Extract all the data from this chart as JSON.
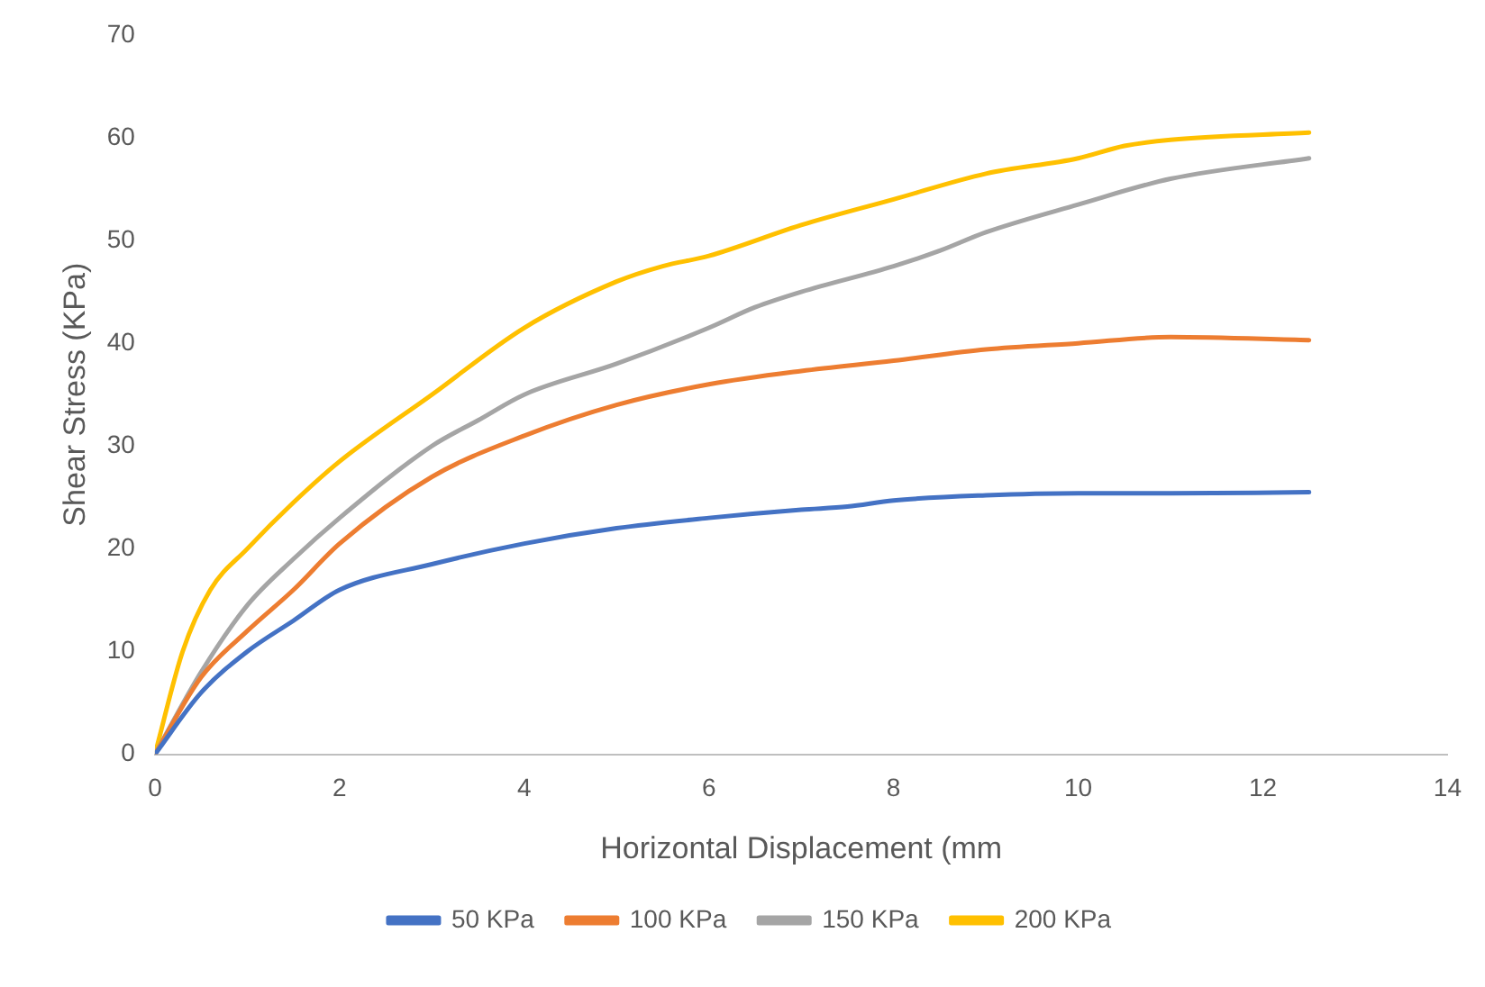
{
  "chart_data": {
    "type": "line",
    "xlabel": "Horizontal Displacement (mm",
    "ylabel": "Shear Stress (KPa)",
    "xlim": [
      0,
      14
    ],
    "xticks": [
      0,
      2,
      4,
      6,
      8,
      10,
      12,
      14
    ],
    "ylim": [
      0,
      70
    ],
    "yticks": [
      0,
      10,
      20,
      30,
      40,
      50,
      60,
      70
    ],
    "grid": false,
    "legend": "bottom",
    "marker": "none",
    "line_style": "solid",
    "series": [
      {
        "name": "50 KPa",
        "color": "#4472c4",
        "x": [
          0,
          0.5,
          1,
          1.5,
          2,
          3,
          4,
          5,
          6,
          7,
          7.5,
          8,
          9,
          10,
          11,
          12.5
        ],
        "values": [
          0,
          6,
          10,
          13,
          16,
          18.5,
          20.5,
          22,
          23,
          23.8,
          24.1,
          24.7,
          25.2,
          25.4,
          25.4,
          25.5
        ]
      },
      {
        "name": "100 KPa",
        "color": "#ed7d31",
        "x": [
          0,
          0.5,
          1,
          1.5,
          2,
          3,
          4,
          5,
          6,
          7,
          8,
          9,
          10,
          11,
          12.5
        ],
        "values": [
          0,
          7.5,
          12,
          16,
          20.5,
          27,
          31,
          34,
          36,
          37.3,
          38.3,
          39.4,
          40,
          40.6,
          40.3
        ]
      },
      {
        "name": "150 KPa",
        "color": "#a5a5a5",
        "x": [
          0,
          0.5,
          1,
          1.5,
          2,
          3,
          3.5,
          4,
          5,
          6,
          6.5,
          7,
          8,
          8.5,
          9,
          10,
          11,
          12.5
        ],
        "values": [
          0,
          8,
          14.5,
          19,
          23,
          30,
          32.5,
          35,
          38,
          41.5,
          43.5,
          45,
          47.5,
          49,
          50.8,
          53.5,
          56,
          58
        ]
      },
      {
        "name": "200 KPa",
        "color": "#ffc000",
        "x": [
          0,
          0.3,
          0.6,
          1,
          1.5,
          2,
          3,
          4,
          5,
          5.5,
          6,
          7,
          8,
          9,
          10,
          10.5,
          11,
          12.5
        ],
        "values": [
          0,
          10,
          16,
          20,
          24.5,
          28.5,
          35,
          41.5,
          46,
          47.5,
          48.5,
          51.5,
          54,
          56.5,
          58,
          59.2,
          59.8,
          60.5
        ]
      }
    ]
  }
}
